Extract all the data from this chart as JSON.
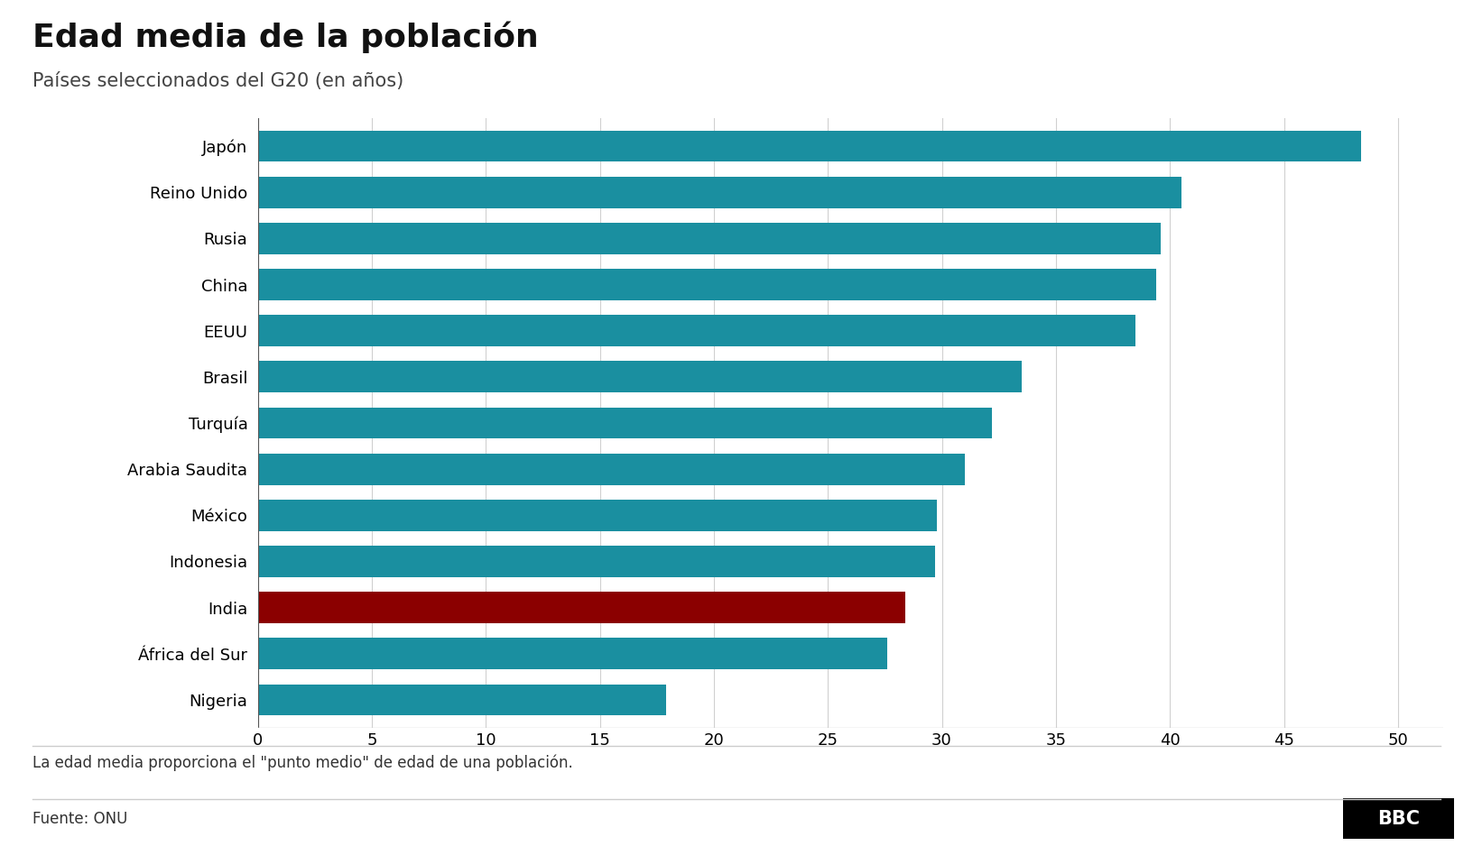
{
  "title": "Edad media de la población",
  "subtitle": "Países seleccionados del G20 (en años)",
  "footnote": "La edad media proporciona el \"punto medio\" de edad de una población.",
  "source": "Fuente: ONU",
  "bbc_logo": "BBC",
  "countries": [
    "Japón",
    "Reino Unido",
    "Rusia",
    "China",
    "EEUU",
    "Brasil",
    "Turquía",
    "Arabia Saudita",
    "México",
    "Indonesia",
    "India",
    "África del Sur",
    "Nigeria"
  ],
  "values": [
    48.4,
    40.5,
    39.6,
    39.4,
    38.5,
    33.5,
    32.2,
    31.0,
    29.8,
    29.7,
    28.4,
    27.6,
    17.9
  ],
  "colors": [
    "#1a8fa0",
    "#1a8fa0",
    "#1a8fa0",
    "#1a8fa0",
    "#1a8fa0",
    "#1a8fa0",
    "#1a8fa0",
    "#1a8fa0",
    "#1a8fa0",
    "#1a8fa0",
    "#8b0000",
    "#1a8fa0",
    "#1a8fa0"
  ],
  "xlim": [
    0,
    52
  ],
  "xticks": [
    0,
    5,
    10,
    15,
    20,
    25,
    30,
    35,
    40,
    45,
    50
  ],
  "background_color": "#ffffff",
  "bar_height": 0.68,
  "title_fontsize": 26,
  "subtitle_fontsize": 15,
  "tick_fontsize": 13,
  "label_fontsize": 13,
  "footnote_fontsize": 12,
  "source_fontsize": 12
}
